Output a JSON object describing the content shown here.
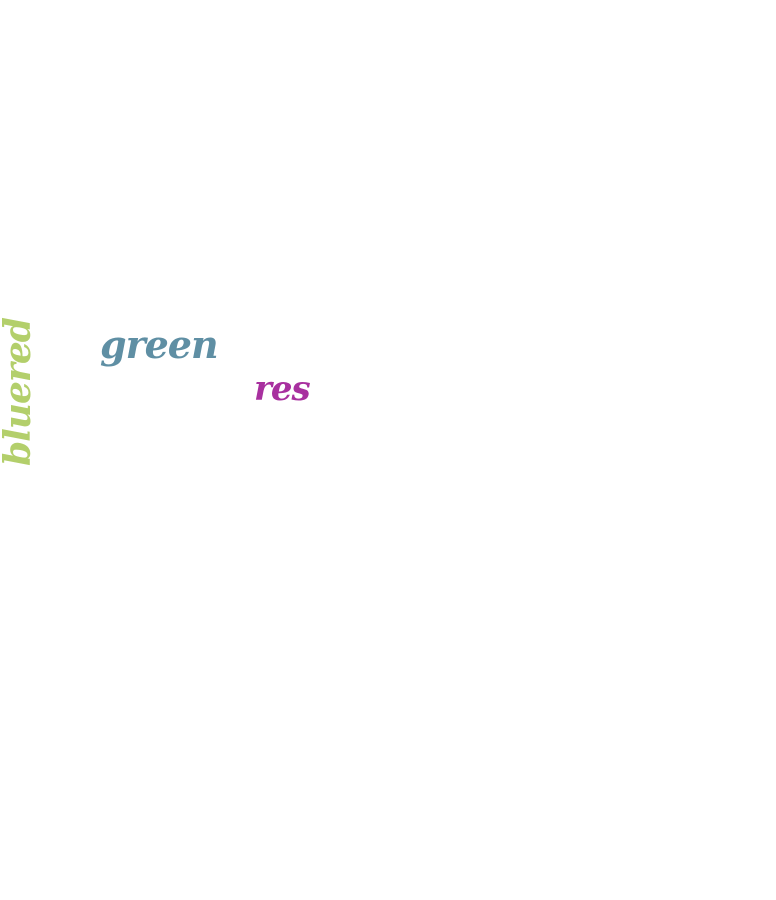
{
  "words": [
    {
      "text": "green",
      "color": "#5f8fa4",
      "orientation": "horizontal"
    },
    {
      "text": "res",
      "color": "#a8309f",
      "orientation": "horizontal"
    },
    {
      "text": "bluered",
      "color": "#b3cf6b",
      "orientation": "vertical"
    }
  ]
}
